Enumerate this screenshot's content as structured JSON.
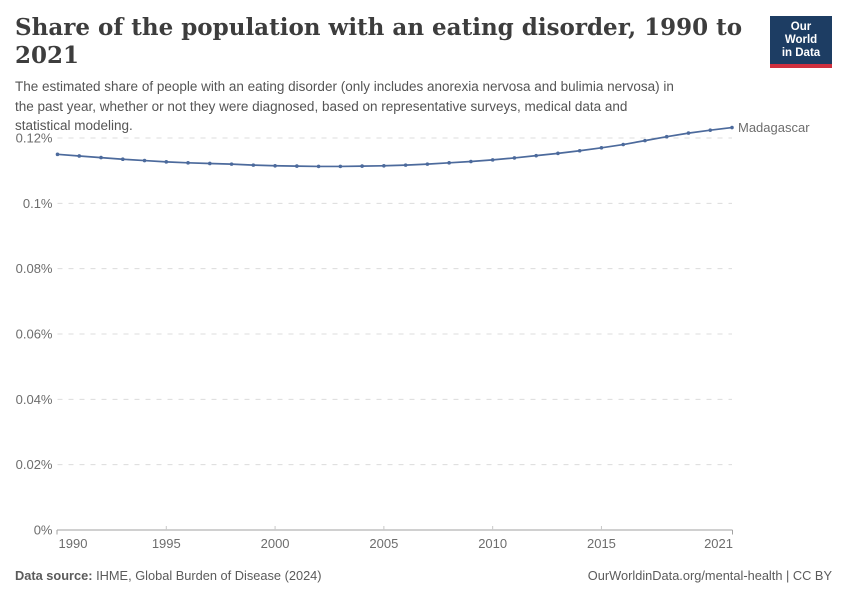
{
  "header": {
    "title": "Share of the population with an eating disorder, 1990 to 2021",
    "subtitle": "The estimated share of people with an eating disorder (only includes anorexia nervosa and bulimia nervosa) in\nthe past year, whether or not they were diagnosed, based on representative surveys, medical data and\nstatistical modeling."
  },
  "logo": {
    "line1": "Our World",
    "line2": "in Data",
    "bg_color": "#1d3d63",
    "accent_color": "#cf303e"
  },
  "chart_data": {
    "type": "line",
    "title": "Share of the population with an eating disorder, 1990 to 2021",
    "unit": "%",
    "xlim": [
      1990,
      2021
    ],
    "ylim": [
      0,
      0.124
    ],
    "grid": "dashed-horizontal",
    "legend_position": "end-of-line-label",
    "x_ticks": [
      1990,
      1995,
      2000,
      2005,
      2010,
      2015,
      2021
    ],
    "y_ticks": [
      {
        "value": 0.0,
        "label": "0%"
      },
      {
        "value": 0.02,
        "label": "0.02%"
      },
      {
        "value": 0.04,
        "label": "0.04%"
      },
      {
        "value": 0.06,
        "label": "0.06%"
      },
      {
        "value": 0.08,
        "label": "0.08%"
      },
      {
        "value": 0.1,
        "label": "0.1%"
      },
      {
        "value": 0.12,
        "label": "0.12%"
      }
    ],
    "x": [
      1990,
      1991,
      1992,
      1993,
      1994,
      1995,
      1996,
      1997,
      1998,
      1999,
      2000,
      2001,
      2002,
      2003,
      2004,
      2005,
      2006,
      2007,
      2008,
      2009,
      2010,
      2011,
      2012,
      2013,
      2014,
      2015,
      2016,
      2017,
      2018,
      2019,
      2020,
      2021
    ],
    "series": [
      {
        "name": "Madagascar",
        "color": "#4c6a9c",
        "values": [
          0.115,
          0.1145,
          0.114,
          0.1135,
          0.1131,
          0.1127,
          0.1124,
          0.1122,
          0.112,
          0.1117,
          0.1115,
          0.1114,
          0.1113,
          0.1113,
          0.1114,
          0.1115,
          0.1117,
          0.112,
          0.1124,
          0.1128,
          0.1133,
          0.1139,
          0.1146,
          0.1153,
          0.1161,
          0.117,
          0.118,
          0.1192,
          0.1204,
          0.1215,
          0.1224,
          0.1232
        ]
      }
    ]
  },
  "footer": {
    "source_prefix": "Data source:",
    "source_text": " IHME, Global Burden of Disease (2024)",
    "credit": "OurWorldinData.org/mental-health | CC BY"
  },
  "colors": {
    "line": "#4c6a9c",
    "grid": "#dcdcdc",
    "axis": "#a2a2a2",
    "tick_label": "#6d6d6d",
    "title_text": "#3d3d3d",
    "subtitle_text": "#555555"
  }
}
